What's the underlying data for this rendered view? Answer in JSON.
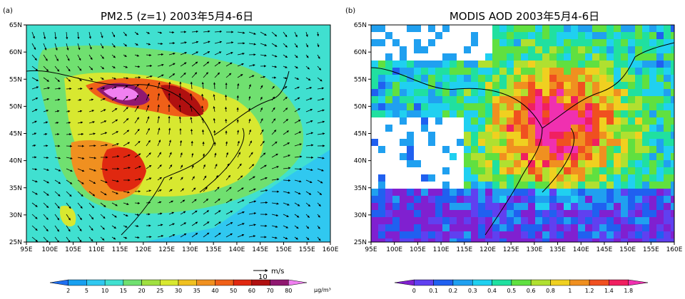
{
  "panels": [
    {
      "id": "a",
      "panel_label": "(a)",
      "title": "PM2.5 (z=1) 2003年5月4-6日",
      "y_ticks": [
        "65N",
        "60N",
        "55N",
        "50N",
        "45N",
        "40N",
        "35N",
        "30N",
        "25N"
      ],
      "x_ticks": [
        "95E",
        "100E",
        "105E",
        "110E",
        "115E",
        "120E",
        "125E",
        "130E",
        "135E",
        "140E",
        "145E",
        "150E",
        "155E",
        "160E"
      ],
      "vector_reference": {
        "value": "10",
        "unit": "m/s"
      },
      "colorbar": {
        "labels": [
          "2",
          "5",
          "10",
          "15",
          "20",
          "25",
          "30",
          "35",
          "40",
          "50",
          "60",
          "70",
          "80"
        ],
        "unit": "μg/m³",
        "colors": [
          "#1f6ff0",
          "#18a0f0",
          "#30c8f0",
          "#40e0d0",
          "#70e070",
          "#a0e040",
          "#d8e830",
          "#f0c020",
          "#f09020",
          "#f06018",
          "#e02810",
          "#b01010",
          "#901870",
          "#f080f0"
        ]
      }
    },
    {
      "id": "b",
      "panel_label": "(b)",
      "title": "MODIS AOD 2003年5月4-6日",
      "y_ticks": [
        "65N",
        "60N",
        "55N",
        "50N",
        "45N",
        "40N",
        "35N",
        "30N",
        "25N"
      ],
      "x_ticks": [
        "95E",
        "100E",
        "105E",
        "110E",
        "115E",
        "120E",
        "125E",
        "130E",
        "135E",
        "140E",
        "145E",
        "150E",
        "155E",
        "160E"
      ],
      "colorbar": {
        "labels": [
          "0",
          "0.1",
          "0.2",
          "0.3",
          "0.4",
          "0.5",
          "0.6",
          "0.8",
          "1",
          "1.2",
          "1.4",
          "1.8"
        ],
        "unit": "",
        "colors": [
          "#8020d0",
          "#6040f0",
          "#2060f0",
          "#20a0f0",
          "#20d0f0",
          "#20e0a0",
          "#60e040",
          "#b0e030",
          "#f0d020",
          "#f09020",
          "#f05020",
          "#f02060",
          "#f030b0"
        ]
      }
    }
  ]
}
